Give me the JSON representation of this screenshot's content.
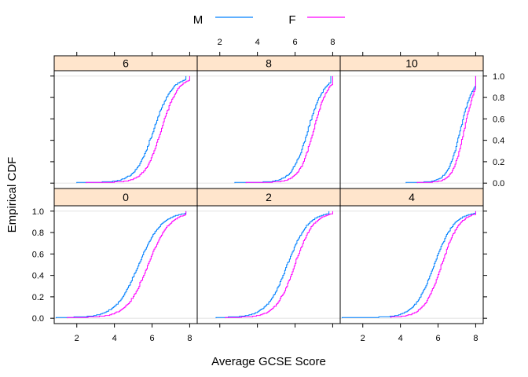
{
  "chart_data": {
    "type": "line",
    "xlabel": "Average GCSE Score",
    "ylabel": "Empirical CDF",
    "xlim": [
      0.8,
      8.4
    ],
    "ylim": [
      -0.05,
      1.05
    ],
    "x_ticks": [
      2,
      4,
      6,
      8
    ],
    "y_ticks": [
      0.0,
      0.2,
      0.4,
      0.6,
      0.8,
      1.0
    ],
    "y_tick_labels": [
      "0.0",
      "0.2",
      "0.4",
      "0.6",
      "0.8",
      "1.0"
    ],
    "reference_lines_y": [
      0,
      1
    ],
    "layout": "3 columns x 2 rows",
    "legend": {
      "position": "top",
      "entries": [
        {
          "label": "M",
          "color": "#0080ff"
        },
        {
          "label": "F",
          "color": "#ff00ff"
        }
      ]
    },
    "panels": [
      {
        "label": "6",
        "row": "top",
        "col": 0,
        "series": [
          {
            "name": "M",
            "color": "#0080ff",
            "min": 2.0,
            "max": 7.8,
            "median": 6.1,
            "scale": 0.48
          },
          {
            "name": "F",
            "color": "#ff00ff",
            "min": 2.5,
            "max": 8.0,
            "median": 6.5,
            "scale": 0.44
          }
        ]
      },
      {
        "label": "8",
        "row": "top",
        "col": 1,
        "series": [
          {
            "name": "M",
            "color": "#0080ff",
            "min": 2.8,
            "max": 7.9,
            "median": 6.7,
            "scale": 0.42
          },
          {
            "name": "F",
            "color": "#ff00ff",
            "min": 3.4,
            "max": 8.0,
            "median": 7.0,
            "scale": 0.38
          }
        ]
      },
      {
        "label": "10",
        "row": "top",
        "col": 2,
        "series": [
          {
            "name": "M",
            "color": "#0080ff",
            "min": 4.3,
            "max": 8.0,
            "median": 7.2,
            "scale": 0.34
          },
          {
            "name": "F",
            "color": "#ff00ff",
            "min": 4.9,
            "max": 8.0,
            "median": 7.4,
            "scale": 0.3
          }
        ]
      },
      {
        "label": "0",
        "row": "bottom",
        "col": 0,
        "series": [
          {
            "name": "M",
            "color": "#0080ff",
            "min": 0.9,
            "max": 7.8,
            "median": 5.3,
            "scale": 0.6
          },
          {
            "name": "F",
            "color": "#ff00ff",
            "min": 1.5,
            "max": 7.8,
            "median": 5.8,
            "scale": 0.56
          }
        ]
      },
      {
        "label": "2",
        "row": "bottom",
        "col": 1,
        "series": [
          {
            "name": "M",
            "color": "#0080ff",
            "min": 1.8,
            "max": 7.8,
            "median": 5.6,
            "scale": 0.55
          },
          {
            "name": "F",
            "color": "#ff00ff",
            "min": 2.3,
            "max": 8.0,
            "median": 6.0,
            "scale": 0.5
          }
        ]
      },
      {
        "label": "4",
        "row": "bottom",
        "col": 2,
        "series": [
          {
            "name": "M",
            "color": "#0080ff",
            "min": 0.9,
            "max": 8.0,
            "median": 5.8,
            "scale": 0.52
          },
          {
            "name": "F",
            "color": "#ff00ff",
            "min": 3.5,
            "max": 8.0,
            "median": 6.2,
            "scale": 0.47
          }
        ]
      }
    ]
  },
  "colors": {
    "strip_fill": "#ffe5cc",
    "reference_line": "#e6e6e6",
    "axis": "#000000"
  }
}
